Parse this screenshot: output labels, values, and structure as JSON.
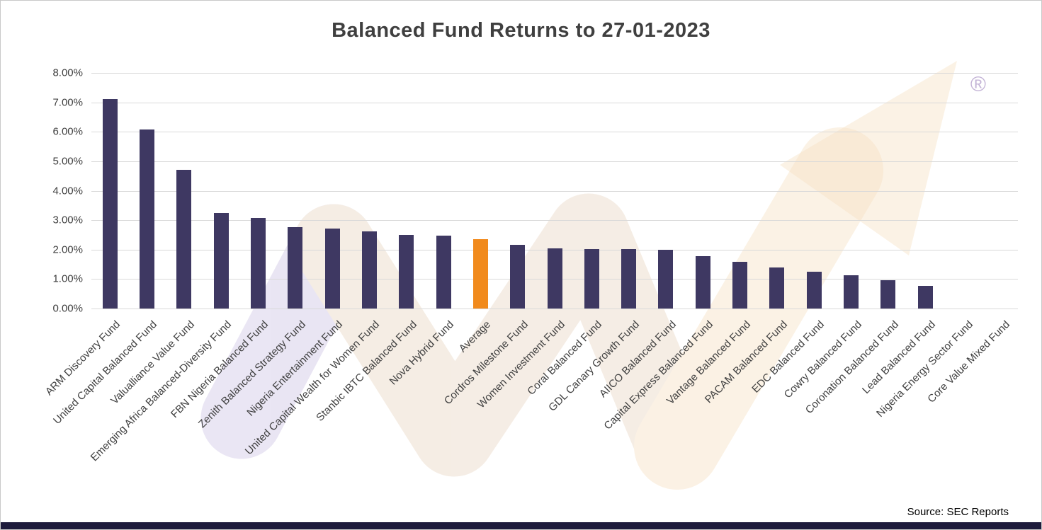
{
  "title": "Balanced Fund Returns to 27-01-2023",
  "source": "Source: SEC Reports",
  "watermark": {
    "registered_mark": "®"
  },
  "chart_data": {
    "type": "bar",
    "title": "Balanced Fund Returns to 27-01-2023",
    "categories": [
      "ARM Discovery Fund",
      "United Capital Balanced Fund",
      "Valualliance Value Fund",
      "Emerging Africa Balanced-Diversity Fund",
      "FBN Nigeria Balanced Fund",
      "Zenith Balanced Strategy Fund",
      "Nigeria Entertainment Fund",
      "United Capital Wealth for Women Fund",
      "Stanbic IBTC Balanced Fund",
      "Nova Hybrid Fund",
      "Average",
      "Cordros Milestone Fund",
      "Women Investment Fund",
      "Coral Balanced Fund",
      "GDL Canary Growth Fund",
      "AIICO Balanced Fund",
      "Capital Express Balanced Fund",
      "Vantage Balanced Fund",
      "PACAM Balanced Fund",
      "EDC Balanced Fund",
      "Cowry Balanced Fund",
      "Coronation Balanced Fund",
      "Lead Balanced Fund",
      "Nigeria Energy Sector Fund",
      "Core Value Mixed Fund"
    ],
    "values": [
      7.1,
      6.08,
      4.7,
      3.25,
      3.07,
      2.77,
      2.72,
      2.62,
      2.5,
      2.48,
      2.35,
      2.17,
      2.05,
      2.03,
      2.02,
      2.0,
      1.78,
      1.58,
      1.4,
      1.25,
      1.12,
      0.95,
      0.78,
      0.0,
      0.0
    ],
    "highlight_category": "Average",
    "colors": {
      "bar": "#3e3862",
      "highlight": "#f18a1c"
    },
    "ylim": [
      0,
      8
    ],
    "yticks": [
      "0.00%",
      "1.00%",
      "2.00%",
      "3.00%",
      "4.00%",
      "5.00%",
      "6.00%",
      "7.00%",
      "8.00%"
    ],
    "grid": true,
    "legend": "none",
    "xlabel": "",
    "ylabel": "",
    "source": "Source: SEC Reports"
  }
}
